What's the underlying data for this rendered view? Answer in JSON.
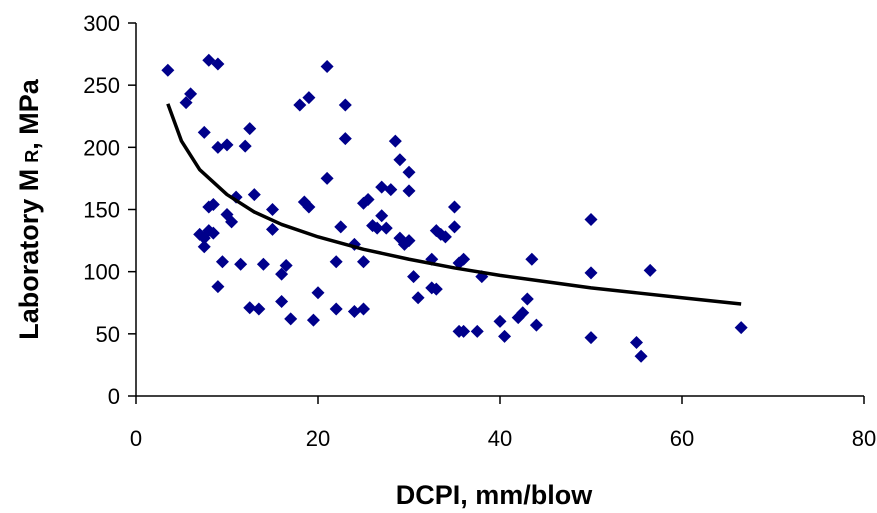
{
  "chart_data": {
    "type": "scatter",
    "title": "",
    "xlabel": "DCPI, mm/blow",
    "ylabel_main": "Laboratory M",
    "ylabel_sub": "R",
    "ylabel_tail": ", MPa",
    "xlim": [
      0,
      80
    ],
    "ylim": [
      0,
      300
    ],
    "x_ticks": [
      0,
      20,
      40,
      60,
      80
    ],
    "y_ticks": [
      0,
      50,
      100,
      150,
      200,
      250,
      300
    ],
    "grid": false,
    "legend": "none",
    "marker": "diamond",
    "marker_color": "#00008B",
    "trend_color": "#000000",
    "series": [
      {
        "points": [
          [
            3.5,
            262
          ],
          [
            5.5,
            236
          ],
          [
            6,
            243
          ],
          [
            7,
            130
          ],
          [
            7.5,
            127
          ],
          [
            7.5,
            212
          ],
          [
            7.5,
            120
          ],
          [
            8,
            133
          ],
          [
            8,
            152
          ],
          [
            8,
            270
          ],
          [
            8.5,
            154
          ],
          [
            8.5,
            131
          ],
          [
            9,
            267
          ],
          [
            9,
            200
          ],
          [
            9,
            88
          ],
          [
            9.5,
            108
          ],
          [
            10,
            202
          ],
          [
            10,
            146
          ],
          [
            10.5,
            140
          ],
          [
            11,
            160
          ],
          [
            11.5,
            106
          ],
          [
            12,
            201
          ],
          [
            12.5,
            71
          ],
          [
            12.5,
            215
          ],
          [
            13,
            162
          ],
          [
            13.5,
            70
          ],
          [
            14,
            106
          ],
          [
            15,
            150
          ],
          [
            15,
            134
          ],
          [
            16,
            76
          ],
          [
            16,
            98
          ],
          [
            16.5,
            105
          ],
          [
            17,
            62
          ],
          [
            18,
            234
          ],
          [
            19,
            240
          ],
          [
            18.5,
            156
          ],
          [
            19,
            152
          ],
          [
            19.5,
            61
          ],
          [
            20,
            83
          ],
          [
            21,
            265
          ],
          [
            21,
            175
          ],
          [
            22,
            108
          ],
          [
            22,
            70
          ],
          [
            22.5,
            136
          ],
          [
            23,
            234
          ],
          [
            23,
            207
          ],
          [
            24,
            68
          ],
          [
            24,
            122
          ],
          [
            25,
            70
          ],
          [
            25,
            108
          ],
          [
            25,
            155
          ],
          [
            25.5,
            158
          ],
          [
            26,
            137
          ],
          [
            26.5,
            135
          ],
          [
            27,
            168
          ],
          [
            27,
            145
          ],
          [
            27.5,
            135
          ],
          [
            28,
            166
          ],
          [
            28.5,
            205
          ],
          [
            29,
            190
          ],
          [
            29,
            127
          ],
          [
            29.5,
            122
          ],
          [
            30,
            180
          ],
          [
            30,
            165
          ],
          [
            30,
            125
          ],
          [
            30.5,
            96
          ],
          [
            31,
            79
          ],
          [
            32.5,
            110
          ],
          [
            32.5,
            87
          ],
          [
            33,
            86
          ],
          [
            33,
            133
          ],
          [
            33.5,
            130
          ],
          [
            34,
            128
          ],
          [
            35,
            152
          ],
          [
            35,
            136
          ],
          [
            35.5,
            107
          ],
          [
            35.5,
            52
          ],
          [
            36,
            110
          ],
          [
            36,
            52
          ],
          [
            37.5,
            52
          ],
          [
            38,
            96
          ],
          [
            40,
            60
          ],
          [
            40.5,
            48
          ],
          [
            42,
            63
          ],
          [
            42.5,
            67
          ],
          [
            43,
            78
          ],
          [
            43.5,
            110
          ],
          [
            44,
            57
          ],
          [
            50,
            142
          ],
          [
            50,
            99
          ],
          [
            50,
            47
          ],
          [
            55,
            43
          ],
          [
            55.5,
            32
          ],
          [
            56.5,
            101
          ],
          [
            66.5,
            55
          ]
        ]
      }
    ],
    "trend": {
      "type": "power",
      "x": [
        3.5,
        5,
        7,
        10,
        13,
        16,
        20,
        25,
        30,
        35,
        40,
        45,
        50,
        55,
        60,
        66.5
      ],
      "y": [
        235,
        205,
        182,
        162,
        148,
        138,
        128,
        118,
        110,
        103,
        97,
        92,
        87,
        83,
        79,
        74
      ]
    }
  }
}
